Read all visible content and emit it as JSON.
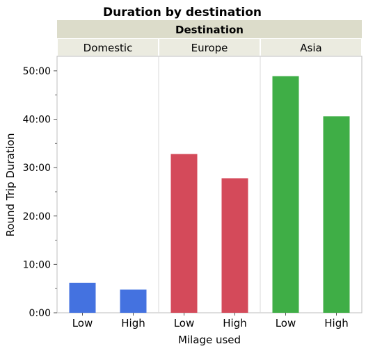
{
  "chart_data": {
    "type": "bar",
    "title": "Duration by destination",
    "group_title": "Destination",
    "groups": [
      "Domestic",
      "Europe",
      "Asia"
    ],
    "categories": [
      "Low",
      "High"
    ],
    "xlabel": "Milage used",
    "ylabel": "Round Trip Duration",
    "ylim": [
      0,
      53
    ],
    "yticks": [
      0,
      10,
      20,
      30,
      40,
      50
    ],
    "ytick_labels": [
      "0:00",
      "10:00",
      "20:00",
      "30:00",
      "40:00",
      "50:00"
    ],
    "grid": false,
    "series": [
      {
        "group": "Domestic",
        "color": "#4472e0",
        "values": [
          6.2,
          4.8
        ]
      },
      {
        "group": "Europe",
        "color": "#d44a5a",
        "values": [
          32.8,
          27.8
        ]
      },
      {
        "group": "Asia",
        "color": "#3fae46",
        "values": [
          48.9,
          40.6
        ]
      }
    ]
  }
}
